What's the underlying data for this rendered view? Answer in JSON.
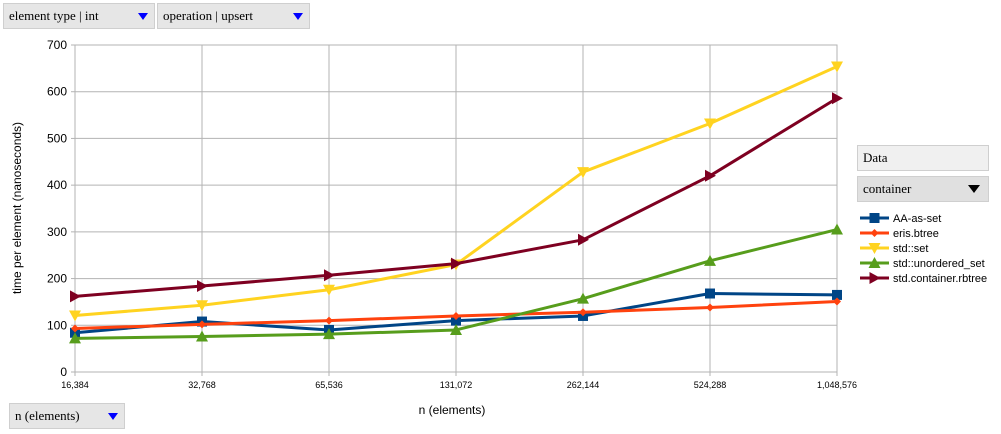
{
  "pivot_fields": {
    "element_type": "element type | int",
    "operation": "operation | upsert",
    "row_field": "n (elements)",
    "data_label": "Data",
    "column_field": "container"
  },
  "chart_data": {
    "type": "line",
    "title": "",
    "xlabel": "n (elements)",
    "ylabel": "time per element (nanoseconds)",
    "categories": [
      "16,384",
      "32,768",
      "65,536",
      "131,072",
      "262,144",
      "524,288",
      "1,048,576"
    ],
    "ylim": [
      0,
      700
    ],
    "yticks": [
      0,
      100,
      200,
      300,
      400,
      500,
      600,
      700
    ],
    "grid": true,
    "legend_position": "right",
    "series": [
      {
        "name": "AA-as-set",
        "color": "#004586",
        "marker": "square",
        "values": [
          84,
          108,
          90,
          110,
          120,
          168,
          165
        ]
      },
      {
        "name": "eris.btree",
        "color": "#ff420e",
        "marker": "diamond",
        "values": [
          93,
          102,
          110,
          120,
          128,
          138,
          151
        ]
      },
      {
        "name": "std::set",
        "color": "#ffd320",
        "marker": "triangle-down",
        "values": [
          121,
          143,
          176,
          230,
          428,
          532,
          654
        ]
      },
      {
        "name": "std::unordered_set",
        "color": "#579d1c",
        "marker": "triangle-up",
        "values": [
          72,
          76,
          81,
          90,
          157,
          238,
          305
        ]
      },
      {
        "name": "std.container.rbtree",
        "color": "#7e0021",
        "marker": "triangle-right",
        "values": [
          162,
          184,
          207,
          232,
          283,
          420,
          586
        ]
      }
    ]
  }
}
